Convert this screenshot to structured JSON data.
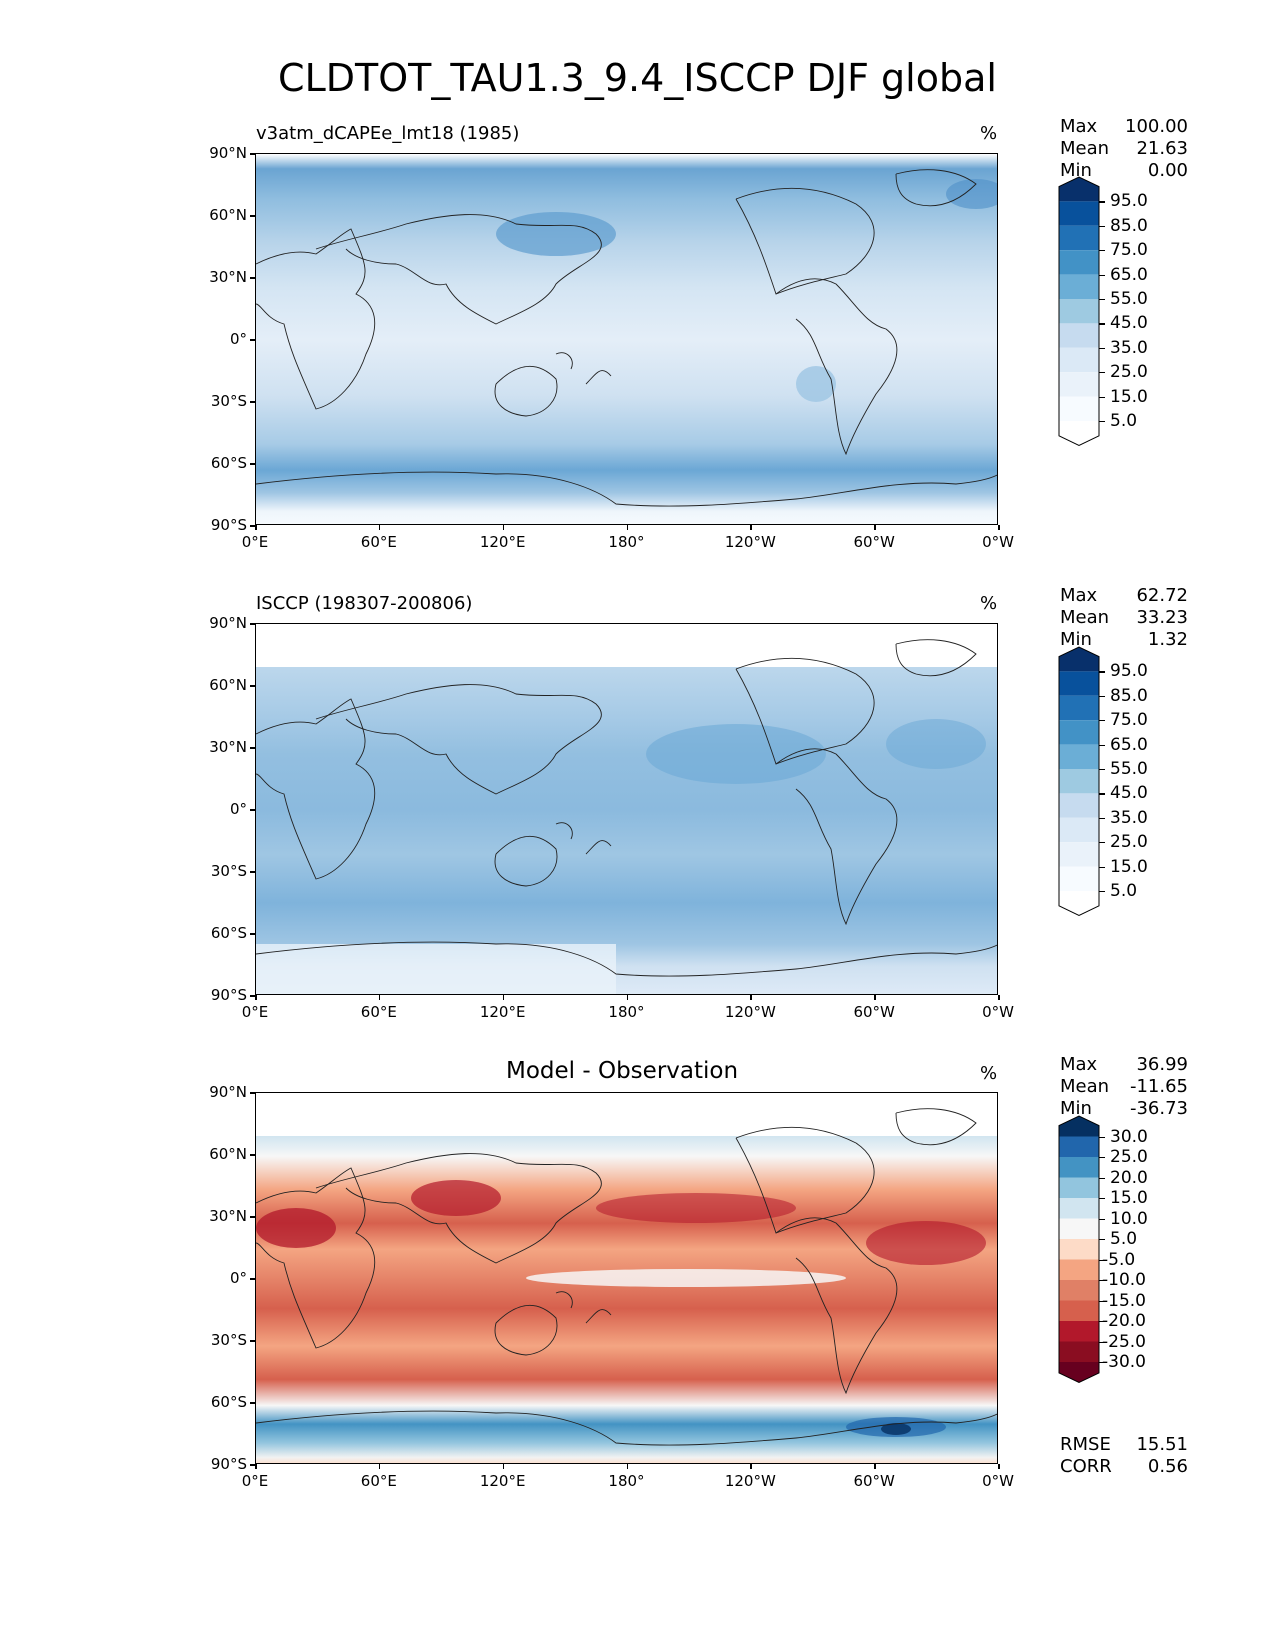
{
  "figure": {
    "title": "CLDTOT_TAU1.3_9.4_ISCCP DJF global"
  },
  "axes": {
    "lat_ticks": [
      "90°N",
      "60°N",
      "30°N",
      "0°",
      "30°S",
      "60°S",
      "90°S"
    ],
    "lon_ticks": [
      "0°E",
      "60°E",
      "120°E",
      "180°",
      "120°W",
      "60°W",
      "0°W"
    ]
  },
  "panels": [
    {
      "label": "v3atm_dCAPEe_lmt18 (1985)",
      "unit": "%",
      "stats": {
        "max_label": "Max",
        "max": "100.00",
        "mean_label": "Mean",
        "mean": "21.63",
        "min_label": "Min",
        "min": "0.00"
      },
      "colorbar": [
        "95.0",
        "85.0",
        "75.0",
        "65.0",
        "55.0",
        "45.0",
        "35.0",
        "25.0",
        "15.0",
        "5.0"
      ]
    },
    {
      "label": "ISCCP (198307-200806)",
      "unit": "%",
      "stats": {
        "max_label": "Max",
        "max": "62.72",
        "mean_label": "Mean",
        "mean": "33.23",
        "min_label": "Min",
        "min": "1.32"
      },
      "colorbar": [
        "95.0",
        "85.0",
        "75.0",
        "65.0",
        "55.0",
        "45.0",
        "35.0",
        "25.0",
        "15.0",
        "5.0"
      ]
    },
    {
      "label": "Model - Observation",
      "unit": "%",
      "stats": {
        "max_label": "Max",
        "max": "36.99",
        "mean_label": "Mean",
        "mean": "-11.65",
        "min_label": "Min",
        "min": "-36.73"
      },
      "colorbar": [
        "30.0",
        "25.0",
        "20.0",
        "15.0",
        "10.0",
        "5.0",
        "-5.0",
        "-10.0",
        "-15.0",
        "-20.0",
        "-25.0",
        "-30.0"
      ],
      "metrics": {
        "rmse_label": "RMSE",
        "rmse": "15.51",
        "corr_label": "CORR",
        "corr": "0.56"
      }
    }
  ],
  "colors": {
    "blues": [
      "#08306b",
      "#08519c",
      "#2171b5",
      "#4292c6",
      "#6baed6",
      "#9ecae1",
      "#c6dbef",
      "#dbe9f6",
      "#eaf2fa",
      "#f7fbff",
      "#ffffff"
    ],
    "diverging": [
      "#053061",
      "#2166ac",
      "#4393c3",
      "#92c5de",
      "#d1e5f0",
      "#f7f7f7",
      "#fddbc7",
      "#f4a582",
      "#e08066",
      "#d6604d",
      "#b2182b",
      "#8a0d21",
      "#67001f"
    ]
  }
}
